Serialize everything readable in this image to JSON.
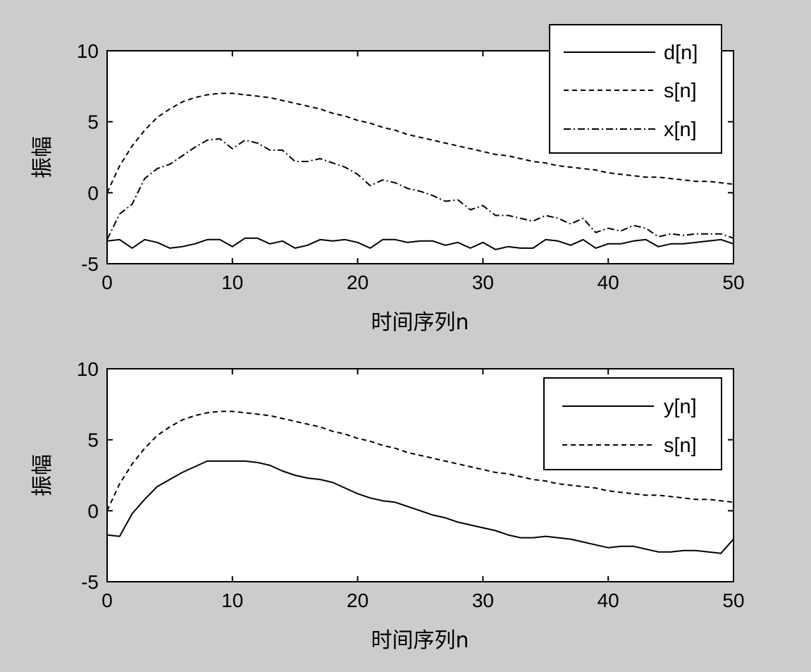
{
  "chart_data": [
    {
      "type": "line",
      "xlabel": "时间序列n",
      "ylabel": "振幅",
      "xlim": [
        0,
        50
      ],
      "ylim": [
        -5,
        10
      ],
      "xticks": [
        0,
        10,
        20,
        30,
        40,
        50
      ],
      "yticks": [
        -5,
        0,
        5,
        10
      ],
      "grid": false,
      "legend_position": "top-right",
      "series": [
        {
          "name": "d[n]",
          "style": "solid",
          "x": [
            0,
            1,
            2,
            3,
            4,
            5,
            6,
            7,
            8,
            9,
            10,
            11,
            12,
            13,
            14,
            15,
            16,
            17,
            18,
            19,
            20,
            21,
            22,
            23,
            24,
            25,
            26,
            27,
            28,
            29,
            30,
            31,
            32,
            33,
            34,
            35,
            36,
            37,
            38,
            39,
            40,
            41,
            42,
            43,
            44,
            45,
            46,
            47,
            48,
            49,
            50
          ],
          "values": [
            -3.4,
            -3.3,
            -3.9,
            -3.3,
            -3.5,
            -3.9,
            -3.8,
            -3.6,
            -3.3,
            -3.3,
            -3.8,
            -3.2,
            -3.2,
            -3.6,
            -3.4,
            -3.9,
            -3.7,
            -3.3,
            -3.4,
            -3.3,
            -3.5,
            -3.9,
            -3.3,
            -3.3,
            -3.5,
            -3.4,
            -3.4,
            -3.7,
            -3.5,
            -3.9,
            -3.5,
            -4.0,
            -3.8,
            -3.9,
            -3.9,
            -3.3,
            -3.4,
            -3.7,
            -3.3,
            -3.9,
            -3.6,
            -3.6,
            -3.4,
            -3.3,
            -3.8,
            -3.6,
            -3.6,
            -3.5,
            -3.4,
            -3.3,
            -3.6
          ]
        },
        {
          "name": "s[n]",
          "style": "dashed",
          "x": [
            0,
            1,
            2,
            3,
            4,
            5,
            6,
            7,
            8,
            9,
            10,
            11,
            12,
            13,
            14,
            15,
            16,
            17,
            18,
            19,
            20,
            21,
            22,
            23,
            24,
            25,
            26,
            27,
            28,
            29,
            30,
            31,
            32,
            33,
            34,
            35,
            36,
            37,
            38,
            39,
            40,
            41,
            42,
            43,
            44,
            45,
            46,
            47,
            48,
            49,
            50
          ],
          "values": [
            0.0,
            1.9,
            3.3,
            4.4,
            5.3,
            5.9,
            6.4,
            6.7,
            6.9,
            7.0,
            7.0,
            6.9,
            6.8,
            6.7,
            6.5,
            6.3,
            6.1,
            5.9,
            5.6,
            5.4,
            5.1,
            4.9,
            4.6,
            4.4,
            4.1,
            3.9,
            3.7,
            3.5,
            3.3,
            3.1,
            2.9,
            2.7,
            2.6,
            2.4,
            2.2,
            2.1,
            1.9,
            1.8,
            1.7,
            1.6,
            1.4,
            1.3,
            1.2,
            1.1,
            1.1,
            1.0,
            0.9,
            0.8,
            0.8,
            0.7,
            0.6
          ]
        },
        {
          "name": "x[n]",
          "style": "dashdot",
          "x": [
            0,
            1,
            2,
            3,
            4,
            5,
            6,
            7,
            8,
            9,
            10,
            11,
            12,
            13,
            14,
            15,
            16,
            17,
            18,
            19,
            20,
            21,
            22,
            23,
            24,
            25,
            26,
            27,
            28,
            29,
            30,
            31,
            32,
            33,
            34,
            35,
            36,
            37,
            38,
            39,
            40,
            41,
            42,
            43,
            44,
            45,
            46,
            47,
            48,
            49,
            50
          ],
          "values": [
            -3.3,
            -1.5,
            -0.8,
            1.0,
            1.7,
            2.0,
            2.6,
            3.2,
            3.7,
            3.8,
            3.1,
            3.7,
            3.5,
            3.0,
            3.0,
            2.2,
            2.2,
            2.4,
            2.1,
            1.8,
            1.3,
            0.5,
            0.9,
            0.7,
            0.3,
            0.1,
            -0.2,
            -0.6,
            -0.5,
            -1.2,
            -0.9,
            -1.6,
            -1.6,
            -1.8,
            -2.0,
            -1.6,
            -1.8,
            -2.2,
            -1.8,
            -2.8,
            -2.5,
            -2.7,
            -2.3,
            -2.5,
            -3.1,
            -2.9,
            -3.0,
            -2.9,
            -2.9,
            -2.9,
            -3.2
          ]
        }
      ]
    },
    {
      "type": "line",
      "xlabel": "时间序列n",
      "ylabel": "振幅",
      "xlim": [
        0,
        50
      ],
      "ylim": [
        -5,
        10
      ],
      "xticks": [
        0,
        10,
        20,
        30,
        40,
        50
      ],
      "yticks": [
        -5,
        0,
        5,
        10
      ],
      "grid": false,
      "legend_position": "top-right",
      "series": [
        {
          "name": "y[n]",
          "style": "solid",
          "x": [
            0,
            1,
            2,
            3,
            4,
            5,
            6,
            7,
            8,
            9,
            10,
            11,
            12,
            13,
            14,
            15,
            16,
            17,
            18,
            19,
            20,
            21,
            22,
            23,
            24,
            25,
            26,
            27,
            28,
            29,
            30,
            31,
            32,
            33,
            34,
            35,
            36,
            37,
            38,
            39,
            40,
            41,
            42,
            43,
            44,
            45,
            46,
            47,
            48,
            49,
            50
          ],
          "values": [
            -1.7,
            -1.8,
            -0.2,
            0.8,
            1.7,
            2.2,
            2.7,
            3.1,
            3.5,
            3.5,
            3.5,
            3.5,
            3.4,
            3.2,
            2.8,
            2.5,
            2.3,
            2.2,
            2.0,
            1.6,
            1.2,
            0.9,
            0.7,
            0.6,
            0.3,
            0.0,
            -0.3,
            -0.5,
            -0.8,
            -1.0,
            -1.2,
            -1.4,
            -1.7,
            -1.9,
            -1.9,
            -1.8,
            -1.9,
            -2.0,
            -2.2,
            -2.4,
            -2.6,
            -2.5,
            -2.5,
            -2.7,
            -2.9,
            -2.9,
            -2.8,
            -2.8,
            -2.9,
            -3.0,
            -2.0
          ]
        },
        {
          "name": "s[n]",
          "style": "dashed",
          "x": [
            0,
            1,
            2,
            3,
            4,
            5,
            6,
            7,
            8,
            9,
            10,
            11,
            12,
            13,
            14,
            15,
            16,
            17,
            18,
            19,
            20,
            21,
            22,
            23,
            24,
            25,
            26,
            27,
            28,
            29,
            30,
            31,
            32,
            33,
            34,
            35,
            36,
            37,
            38,
            39,
            40,
            41,
            42,
            43,
            44,
            45,
            46,
            47,
            48,
            49,
            50
          ],
          "values": [
            0.0,
            1.9,
            3.3,
            4.4,
            5.3,
            5.9,
            6.4,
            6.7,
            6.9,
            7.0,
            7.0,
            6.9,
            6.8,
            6.7,
            6.5,
            6.3,
            6.1,
            5.9,
            5.6,
            5.4,
            5.1,
            4.9,
            4.6,
            4.4,
            4.1,
            3.9,
            3.7,
            3.5,
            3.3,
            3.1,
            2.9,
            2.7,
            2.6,
            2.4,
            2.2,
            2.1,
            1.9,
            1.8,
            1.7,
            1.6,
            1.4,
            1.3,
            1.2,
            1.1,
            1.1,
            1.0,
            0.9,
            0.8,
            0.8,
            0.7,
            0.6
          ]
        }
      ]
    }
  ]
}
